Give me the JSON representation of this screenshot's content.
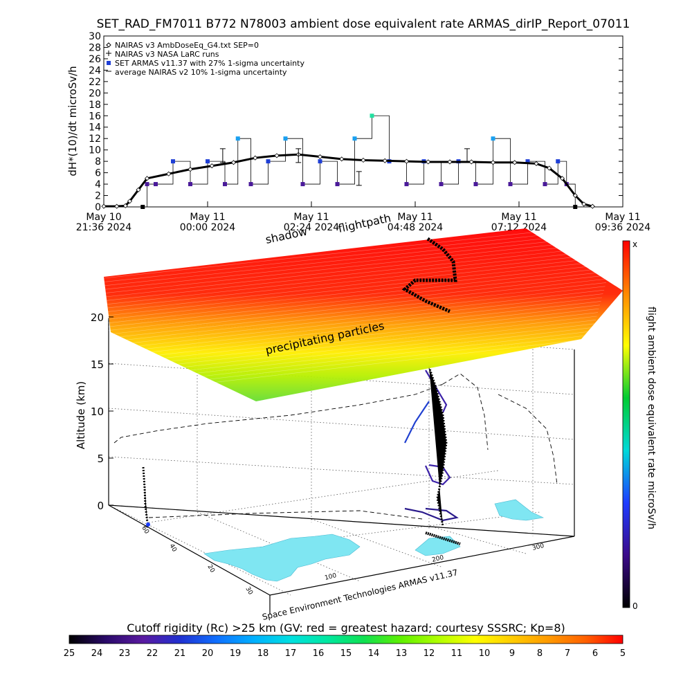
{
  "chart_data": [
    {
      "type": "line",
      "title": "SET_RAD_FM7011  B772 N78003 ambient dose equivalent rate ARMAS_dirIP_Report_07011",
      "ylabel": "dH*(10)/dt microSv/h",
      "ylim": [
        0,
        30
      ],
      "yticks": [
        "0",
        "2",
        "4",
        "6",
        "8",
        "10",
        "12",
        "14",
        "16",
        "18",
        "20",
        "22",
        "24",
        "26",
        "28",
        "30"
      ],
      "xticks": [
        {
          "date": "May 10",
          "time": "21:36 2024"
        },
        {
          "date": "May 11",
          "time": "00:00 2024"
        },
        {
          "date": "May 11",
          "time": "02:24 2024"
        },
        {
          "date": "May 11",
          "time": "04:48 2024"
        },
        {
          "date": "May 11",
          "time": "07:12 2024"
        },
        {
          "date": "May 11",
          "time": "09:36 2024"
        }
      ],
      "x_unit": "hours after 2024-05-10 21:36 UTC",
      "xlim": [
        0,
        12
      ],
      "legend": [
        {
          "marker": "diamond",
          "text": "NAIRAS v3 AmbDoseEq_G4.txt SEP=0"
        },
        {
          "marker": "plus",
          "text": "NAIRAS v3 NASA LaRC runs"
        },
        {
          "marker": "square-blue",
          "text": "SET ARMAS v11.37 with 27% 1-sigma uncertainty"
        },
        {
          "marker": "dash",
          "text": "average NAIRAS v2 10% 1-sigma uncertainty"
        }
      ],
      "legend_position": "top-left",
      "series": [
        {
          "name": "NAIRAS v3 AmbDoseEq_G4.txt SEP=0",
          "color": "#000000",
          "x": [
            0.0,
            0.3,
            0.5,
            0.6,
            0.8,
            1.0,
            1.5,
            2.0,
            2.5,
            3.0,
            3.5,
            4.0,
            4.5,
            5.0,
            5.5,
            6.0,
            6.5,
            7.0,
            7.5,
            8.0,
            8.5,
            9.0,
            9.5,
            10.0,
            10.3,
            10.6,
            10.9,
            11.1,
            11.3
          ],
          "y": [
            0.1,
            0.1,
            0.2,
            1.0,
            3.0,
            5.0,
            5.8,
            6.6,
            7.2,
            7.8,
            8.6,
            9.0,
            9.2,
            8.8,
            8.4,
            8.2,
            8.1,
            8.0,
            7.9,
            7.9,
            7.9,
            7.8,
            7.8,
            7.6,
            6.8,
            5.0,
            2.0,
            0.5,
            0.1
          ]
        },
        {
          "name": "NAIRAS v3 NASA LaRC runs",
          "color": "#000000",
          "x": [
            2.75,
            4.5,
            5.9,
            8.4
          ],
          "y": [
            9.0,
            9.0,
            5.0,
            9.0
          ]
        },
        {
          "name": "SET ARMAS v11.37 with 27% 1-sigma uncertainty",
          "color": "#1f3fd6",
          "x": [
            0.9,
            1.0,
            1.2,
            1.6,
            2.0,
            2.4,
            2.8,
            3.1,
            3.4,
            3.8,
            4.2,
            4.6,
            5.0,
            5.4,
            5.8,
            6.2,
            6.6,
            7.0,
            7.4,
            7.8,
            8.2,
            8.6,
            9.0,
            9.4,
            9.8,
            10.2,
            10.5,
            10.7,
            10.9
          ],
          "y": [
            0,
            4,
            4,
            8,
            4,
            8,
            4,
            12,
            4,
            8,
            12,
            4,
            8,
            4,
            12,
            16,
            8,
            4,
            8,
            4,
            8,
            4,
            12,
            4,
            8,
            4,
            8,
            4,
            0
          ]
        }
      ]
    },
    {
      "type": "scatter",
      "title": "",
      "annotations": [
        "shadow",
        "flightpath",
        "precipitating particles"
      ],
      "zlabel": "Altitude (km)",
      "zticks": [
        "0",
        "5",
        "10",
        "15",
        "20"
      ],
      "lon_ticks": [
        "100",
        "200",
        "300"
      ],
      "lat_ticks": [
        "60",
        "40",
        "20",
        "30"
      ],
      "credit": "Space Environment Technologies ARMAS v11.37",
      "side_colorbar": {
        "label": "flight ambient dose equivalent rate microSv/h",
        "top_label": "x",
        "bottom_label": "0",
        "colors": [
          "#000000",
          "#3b0a8a",
          "#1e3cff",
          "#00d9d9",
          "#00cc33",
          "#ffff00",
          "#ff8800",
          "#ff0000"
        ]
      },
      "flight_altitudes_km": [
        0,
        1,
        3,
        6,
        9,
        11,
        11,
        10,
        10,
        11,
        11,
        10,
        8,
        4,
        2,
        0
      ]
    },
    {
      "type": "heatmap",
      "title": "Cutoff rigidity (Rc) >25 km (GV: red = greatest hazard; courtesy SSSRC; Kp=8)",
      "colorbar_ticks": [
        "25",
        "24",
        "23",
        "22",
        "21",
        "20",
        "19",
        "18",
        "17",
        "16",
        "15",
        "14",
        "13",
        "12",
        "11",
        "10",
        "9",
        "8",
        "7",
        "6",
        "5"
      ],
      "colors": [
        "#000000",
        "#2a0a6a",
        "#5a1aa0",
        "#2030d0",
        "#1070ff",
        "#00b0ff",
        "#00e0e0",
        "#00e8a0",
        "#10e050",
        "#60f000",
        "#b0ff00",
        "#ffff00",
        "#ffcc00",
        "#ff9900",
        "#ff6000",
        "#ff0000"
      ]
    }
  ]
}
